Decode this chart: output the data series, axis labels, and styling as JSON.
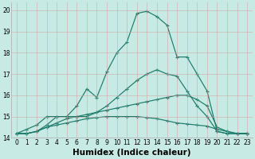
{
  "xlabel": "Humidex (Indice chaleur)",
  "bg_color": "#c8eae4",
  "line_color": "#1a7a6a",
  "grid_color": "#b0d8d0",
  "series": [
    [
      14.2,
      14.4,
      14.6,
      15.0,
      15.0,
      15.0,
      15.5,
      16.3,
      15.9,
      17.1,
      18.0,
      18.5,
      19.85,
      19.95,
      19.7,
      19.3,
      17.8,
      17.8,
      17.0,
      16.2,
      14.3,
      14.2,
      14.2,
      14.2
    ],
    [
      14.2,
      14.2,
      14.3,
      14.6,
      15.0,
      15.0,
      15.0,
      15.0,
      15.2,
      15.5,
      15.9,
      16.3,
      16.7,
      17.0,
      17.2,
      17.0,
      16.9,
      16.2,
      15.5,
      15.0,
      14.3,
      14.2,
      14.2,
      14.2
    ],
    [
      14.2,
      14.2,
      14.3,
      14.5,
      14.7,
      14.9,
      15.0,
      15.1,
      15.2,
      15.3,
      15.4,
      15.5,
      15.6,
      15.7,
      15.8,
      15.9,
      16.0,
      16.0,
      15.8,
      15.5,
      14.5,
      14.3,
      14.2,
      14.2
    ],
    [
      14.2,
      14.2,
      14.3,
      14.5,
      14.6,
      14.7,
      14.8,
      14.9,
      14.95,
      15.0,
      15.0,
      15.0,
      15.0,
      14.95,
      14.9,
      14.8,
      14.7,
      14.65,
      14.6,
      14.55,
      14.4,
      14.3,
      14.2,
      14.2
    ]
  ],
  "xlim": [
    -0.5,
    23.5
  ],
  "ylim": [
    14.0,
    20.35
  ],
  "xticks": [
    0,
    1,
    2,
    3,
    4,
    5,
    6,
    7,
    8,
    9,
    10,
    11,
    12,
    13,
    14,
    15,
    16,
    17,
    18,
    19,
    20,
    21,
    22,
    23
  ],
  "yticks": [
    14,
    15,
    16,
    17,
    18,
    19,
    20
  ],
  "tick_fontsize": 5.5,
  "xlabel_fontsize": 7.5
}
